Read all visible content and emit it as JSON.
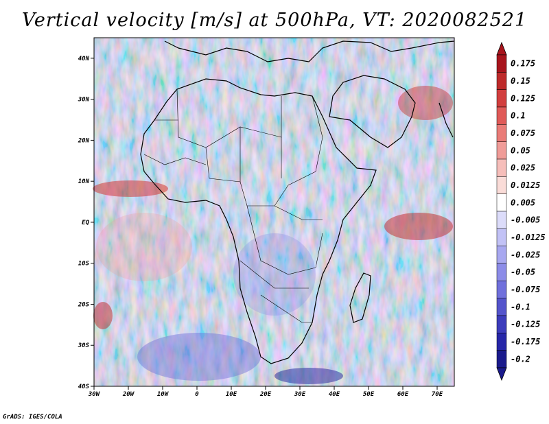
{
  "title": "Vertical velocity [m/s] at 500hPa, VT: 2020082521",
  "credit": "GrADS: IGES/COLA",
  "map": {
    "lat_ticks": [
      "40N",
      "30N",
      "20N",
      "10N",
      "EQ",
      "10S",
      "20S",
      "30S",
      "40S"
    ],
    "lon_ticks": [
      "30W",
      "20W",
      "10W",
      "0",
      "10E",
      "20E",
      "30E",
      "40E",
      "50E",
      "60E",
      "70E"
    ],
    "lon_range": [
      -30,
      75
    ],
    "lat_range": [
      -40,
      45
    ]
  },
  "colorbar": {
    "labels": [
      "0.175",
      "0.15",
      "0.125",
      "0.1",
      "0.075",
      "0.05",
      "0.025",
      "0.0125",
      "0.005",
      "-0.005",
      "-0.0125",
      "-0.025",
      "-0.05",
      "-0.075",
      "-0.1",
      "-0.125",
      "-0.175",
      "-0.2"
    ],
    "colors": [
      "#a8141c",
      "#be2a2a",
      "#d23e3e",
      "#e05a58",
      "#ea7c78",
      "#f09c98",
      "#f6beba",
      "#fadcd8",
      "#ffffff",
      "#dcdcfa",
      "#c2c2f6",
      "#a8a8f0",
      "#8c8ce8",
      "#7070dc",
      "#5454cc",
      "#3c3cbc",
      "#2626a8",
      "#1a1a8c"
    ]
  }
}
